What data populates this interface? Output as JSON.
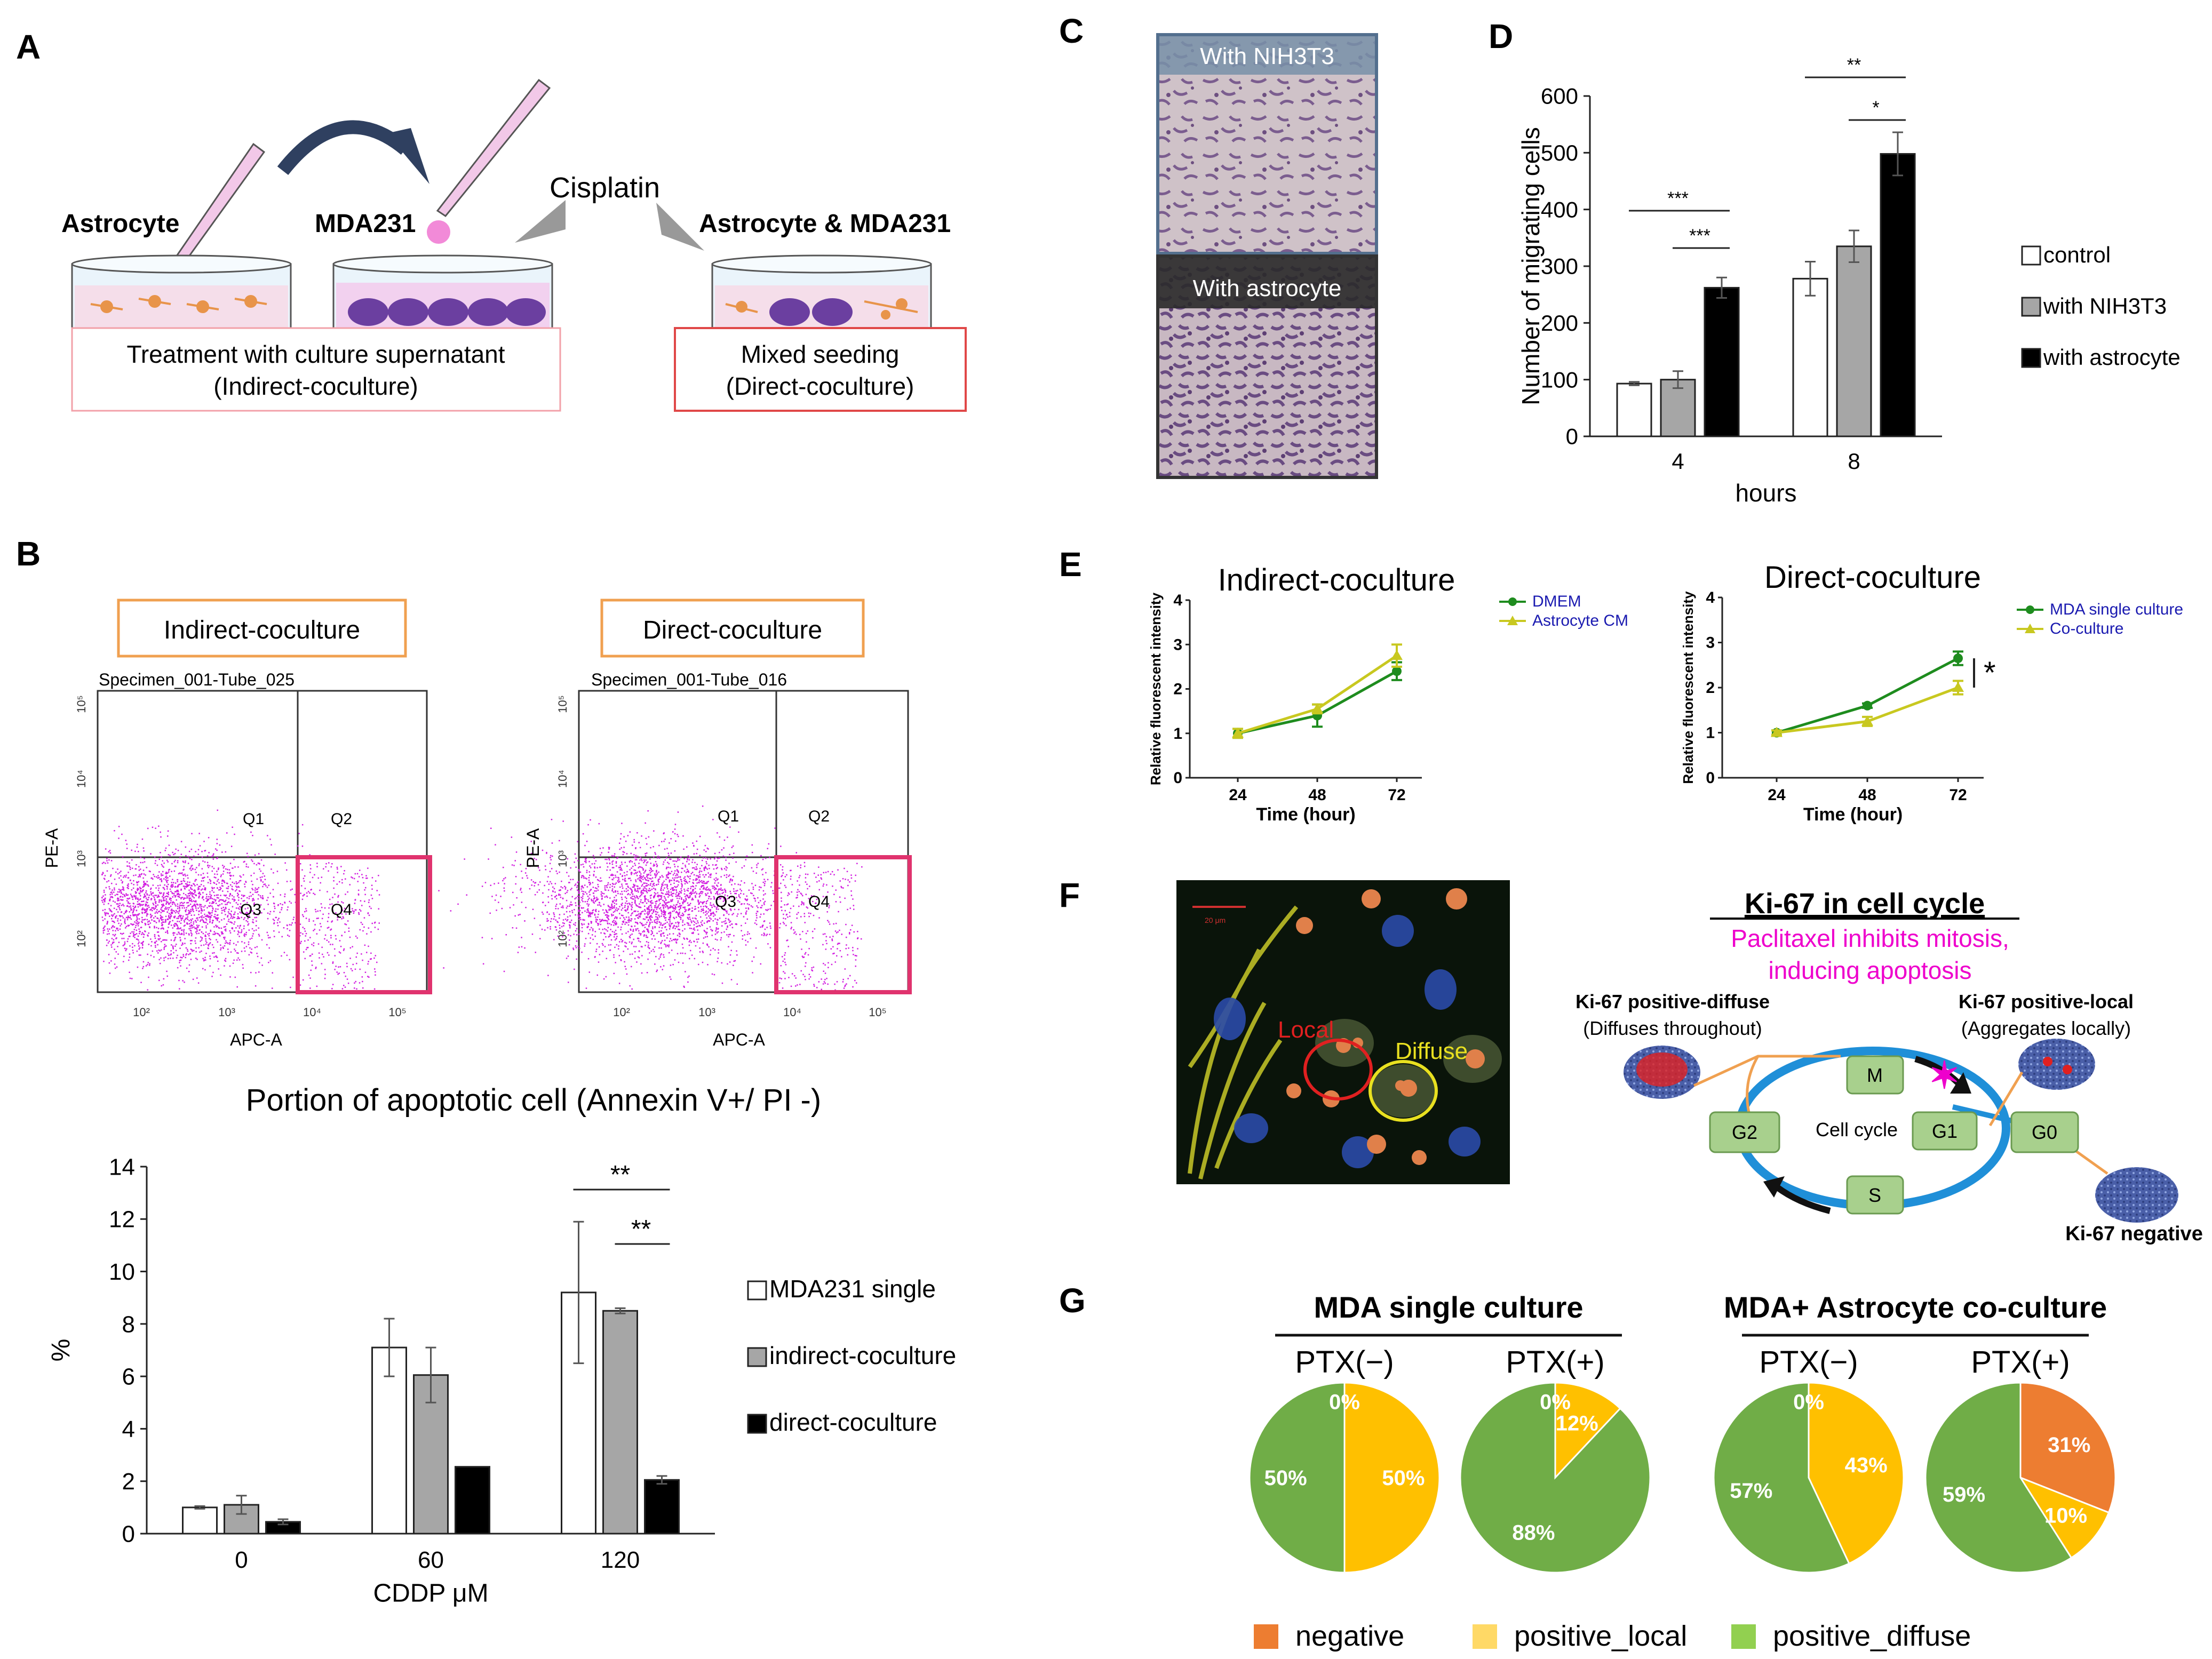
{
  "panels": {
    "A": "A",
    "B": "B",
    "C": "C",
    "D": "D",
    "E": "E",
    "F": "F",
    "G": "G"
  },
  "panelA": {
    "astrocyte": "Astrocyte",
    "mda231": "MDA231",
    "cisplatin": "Cisplatin",
    "astro_mda": "Astrocyte & MDA231",
    "indirect_line1": "Treatment with culture supernatant",
    "indirect_line2": "(Indirect-coculture)",
    "direct_line1": "Mixed seeding",
    "direct_line2": "(Direct-coculture)",
    "colors": {
      "pipette": "#e6a8d8",
      "mda_cell": "#6b3fa0",
      "astro_cell": "#e8944a",
      "dish": "#cfe6f2",
      "box_border": "#e06060"
    }
  },
  "panelB": {
    "flow": [
      {
        "title": "Indirect-coculture",
        "specimen": "Specimen_001-Tube_025",
        "quadrants": [
          "Q1",
          "Q2",
          "Q3",
          "Q4"
        ],
        "xaxis": "APC-A",
        "yaxis": "PE-A",
        "ticks": [
          "10²",
          "10³",
          "10⁴",
          "10⁵"
        ]
      },
      {
        "title": "Direct-coculture",
        "specimen": "Specimen_001-Tube_016",
        "quadrants": [
          "Q1",
          "Q2",
          "Q3",
          "Q4"
        ],
        "xaxis": "APC-A",
        "yaxis": "PE-A",
        "ticks": [
          "10²",
          "10³",
          "10⁴",
          "10⁵"
        ]
      }
    ],
    "dot_color": "#d21ee0",
    "gate_color": "#e0336e",
    "title_box_color": "#f0a050"
  },
  "panelC": {
    "top_label": "With NIH3T3",
    "bottom_label": "With astrocyte",
    "bg": "#cbbcc4",
    "cell": "#7a5c8e"
  },
  "panelF": {
    "title": "Ki-67 in cell cycle",
    "subtitle1": "Paclitaxel inhibits mitosis,",
    "subtitle2": "inducing apoptosis",
    "local": "Local",
    "diffuse": "Diffuse",
    "scale": "20 μm",
    "pos_diffuse": "Ki-67 positive-diffuse",
    "pos_diffuse_sub": "(Diffuses throughout)",
    "pos_local": "Ki-67 positive-local",
    "pos_local_sub": "(Aggregates locally)",
    "negative": "Ki-67 negative",
    "phases": {
      "M": "M",
      "G2": "G2",
      "G1": "G1",
      "G0": "G0",
      "S": "S"
    },
    "cycle": "Cell cycle",
    "colors": {
      "phase_fill": "#a8d08d",
      "phase_stroke": "#6a9a50",
      "cycle_ring": "#1f8fd8",
      "magenta": "#ee00cc"
    }
  },
  "chart_data": [
    {
      "id": "D",
      "type": "bar",
      "categories": [
        "4",
        "8"
      ],
      "xlabel": "hours",
      "ylabel": "Number of migrating cells",
      "ylim": [
        0,
        600
      ],
      "yticks": [
        0,
        100,
        200,
        300,
        400,
        500,
        600
      ],
      "series": [
        {
          "name": "control",
          "values": [
            93,
            278
          ],
          "errors": [
            3,
            30
          ],
          "color": "#ffffff"
        },
        {
          "name": "with NIH3T3",
          "values": [
            100,
            335
          ],
          "errors": [
            15,
            28
          ],
          "color": "#a6a6a6"
        },
        {
          "name": "with astrocyte",
          "values": [
            262,
            498
          ],
          "errors": [
            18,
            38
          ],
          "color": "#000000"
        }
      ],
      "significance": [
        {
          "label": "***",
          "group": 0,
          "from": 0,
          "to": 2
        },
        {
          "label": "***",
          "group": 0,
          "from": 1,
          "to": 2
        },
        {
          "label": "**",
          "group": 1,
          "from": 0,
          "to": 2
        },
        {
          "label": "*",
          "group": 1,
          "from": 1,
          "to": 2
        }
      ],
      "legend": "right"
    },
    {
      "id": "E-left",
      "type": "line",
      "title": "Indirect-coculture",
      "xlabel": "Time (hour)",
      "ylabel": "Relative fluorescent intensity",
      "x": [
        24,
        48,
        72
      ],
      "ylim": [
        0,
        4
      ],
      "yticks": [
        0,
        1,
        2,
        3,
        4
      ],
      "series": [
        {
          "name": "DMEM",
          "values": [
            1.0,
            1.4,
            2.4
          ],
          "errors": [
            0.1,
            0.25,
            0.2
          ],
          "color": "#1e8c1e"
        },
        {
          "name": "Astrocyte CM",
          "values": [
            1.0,
            1.55,
            2.75
          ],
          "errors": [
            0.1,
            0.1,
            0.25
          ],
          "color": "#c8c820"
        }
      ],
      "legend": "right"
    },
    {
      "id": "E-right",
      "type": "line",
      "title": "Direct-coculture",
      "xlabel": "Time (hour)",
      "ylabel": "Relative fluorescent intensity",
      "x": [
        24,
        48,
        72
      ],
      "ylim": [
        0,
        4
      ],
      "yticks": [
        0,
        1,
        2,
        3,
        4
      ],
      "series": [
        {
          "name": "MDA single culture",
          "values": [
            1.0,
            1.6,
            2.65
          ],
          "errors": [
            0.05,
            0.05,
            0.15
          ],
          "color": "#1e8c1e"
        },
        {
          "name": "Co-culture",
          "values": [
            1.0,
            1.25,
            2.0
          ],
          "errors": [
            0.05,
            0.1,
            0.15
          ],
          "color": "#c8c820"
        }
      ],
      "significance": [
        {
          "label": "*"
        }
      ],
      "legend": "right"
    },
    {
      "id": "B-bar",
      "type": "bar",
      "title": "Portion of apoptotic cell (Annexin V+/ PI -)",
      "categories": [
        "0",
        "60",
        "120"
      ],
      "xlabel": "CDDP μM",
      "ylabel": "%",
      "ylim": [
        0,
        14
      ],
      "yticks": [
        0,
        2,
        4,
        6,
        8,
        10,
        12,
        14
      ],
      "series": [
        {
          "name": "MDA231 single",
          "values": [
            1.0,
            7.1,
            9.2
          ],
          "errors": [
            0.05,
            1.1,
            2.7
          ],
          "color": "#ffffff"
        },
        {
          "name": "indirect-coculture",
          "values": [
            1.1,
            6.05,
            8.5
          ],
          "errors": [
            0.35,
            1.05,
            0.1
          ],
          "color": "#a6a6a6"
        },
        {
          "name": "direct-coculture",
          "values": [
            0.45,
            2.55,
            2.05
          ],
          "errors": [
            0.1,
            0,
            0.15
          ],
          "color": "#000000"
        }
      ],
      "significance": [
        {
          "label": "**",
          "group": 2,
          "from": 0,
          "to": 2
        },
        {
          "label": "**",
          "group": 2,
          "from": 1,
          "to": 2
        }
      ],
      "legend": "right"
    },
    {
      "id": "G",
      "type": "pie",
      "group_titles": [
        "MDA single culture",
        "MDA+ Astrocyte  co-culture"
      ],
      "categories": [
        "negative",
        "positive_local",
        "positive_diffuse"
      ],
      "colors": [
        "#ed7d31",
        "#ffc000",
        "#70ad47"
      ],
      "legend_colors": [
        "#ed7d31",
        "#ffd966",
        "#92d050"
      ],
      "pies": [
        {
          "label": "PTX(−)",
          "values": [
            0,
            50,
            50
          ],
          "labels": [
            "0%",
            "50%",
            "50%"
          ]
        },
        {
          "label": "PTX(+)",
          "values": [
            0,
            12,
            88
          ],
          "labels": [
            "0%",
            "12%",
            "88%"
          ]
        },
        {
          "label": "PTX(−)",
          "values": [
            0,
            43,
            57
          ],
          "labels": [
            "0%",
            "43%",
            "57%"
          ]
        },
        {
          "label": "PTX(+)",
          "values": [
            31,
            10,
            59
          ],
          "labels": [
            "31%",
            "10%",
            "59%"
          ]
        }
      ],
      "legend": "bottom"
    }
  ]
}
